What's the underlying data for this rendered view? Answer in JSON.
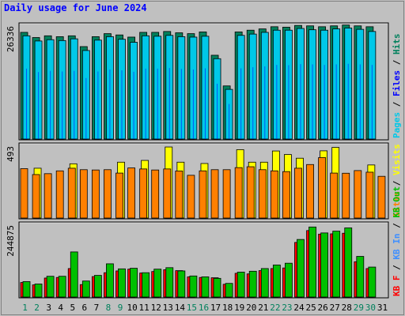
{
  "title": "Daily usage for June 2024",
  "colors": {
    "background": "#c0c0c0",
    "panel": "#c0c0c0",
    "hits": "#00805c",
    "files": "#0000ff",
    "pages": "#00c8e8",
    "visits": "#ffff00",
    "sites": "#ff8000",
    "kb_in": "#00c000",
    "kb_out": "#3f8fff",
    "kb_f": "#ff0000",
    "title": "#0000ff"
  },
  "days": [
    "1",
    "2",
    "3",
    "4",
    "5",
    "6",
    "7",
    "8",
    "9",
    "10",
    "11",
    "12",
    "13",
    "14",
    "15",
    "16",
    "17",
    "18",
    "19",
    "20",
    "21",
    "22",
    "23",
    "24",
    "25",
    "26",
    "27",
    "28",
    "29",
    "30",
    "31"
  ],
  "weekend_days": [
    1,
    2,
    8,
    9,
    15,
    16,
    22,
    23,
    29,
    30
  ],
  "chart_data": [
    {
      "type": "bar",
      "name": "hits-files-pages",
      "max_label": "26336",
      "ymax": 26336,
      "legend": [
        "Pages",
        "/",
        "Files",
        "/",
        "Hits"
      ],
      "legend_colors": [
        "#00c8e8",
        "#000000",
        "#0000ff",
        "#000000",
        "#00805c"
      ],
      "series": [
        {
          "name": "Hits",
          "values": [
            24700,
            23500,
            23900,
            23700,
            23900,
            21400,
            23700,
            24400,
            24100,
            23600,
            24700,
            24700,
            24900,
            24600,
            24400,
            24800,
            19400,
            12300,
            24800,
            25200,
            25500,
            26000,
            25900,
            26300,
            26200,
            26000,
            26200,
            26400,
            26200,
            26000,
            0
          ]
        },
        {
          "name": "Files",
          "values": [
            8000,
            7600,
            7700,
            7600,
            7700,
            6900,
            7600,
            7900,
            7800,
            7600,
            8000,
            8000,
            8000,
            7900,
            7900,
            8000,
            6300,
            3900,
            8000,
            8100,
            8200,
            8400,
            8300,
            8500,
            8400,
            8400,
            8500,
            8500,
            8500,
            8400,
            0
          ]
        },
        {
          "name": "Pages",
          "values": [
            23900,
            22700,
            23000,
            22800,
            23200,
            20500,
            22900,
            23700,
            23100,
            22400,
            23900,
            23800,
            24000,
            23700,
            23600,
            23800,
            18600,
            11500,
            24000,
            24300,
            24700,
            25200,
            25200,
            25600,
            25300,
            25200,
            25500,
            25700,
            25400,
            24900,
            0
          ]
        }
      ]
    },
    {
      "type": "bar",
      "name": "visits-sites",
      "max_label": "493",
      "ymax": 493,
      "legend": [
        "Sites",
        "/",
        "Visits"
      ],
      "legend_colors": [
        "#ff8000",
        "#000000",
        "#ffff00"
      ],
      "series": [
        {
          "name": "Visits",
          "values": [
            0,
            338,
            0,
            0,
            368,
            0,
            0,
            0,
            379,
            0,
            391,
            0,
            482,
            379,
            0,
            370,
            0,
            0,
            464,
            379,
            379,
            455,
            431,
            406,
            0,
            456,
            479,
            0,
            0,
            360,
            0
          ]
        },
        {
          "name": "Sites",
          "values": [
            335,
            295,
            301,
            320,
            338,
            328,
            326,
            328,
            305,
            340,
            333,
            326,
            333,
            319,
            290,
            320,
            328,
            328,
            342,
            348,
            328,
            320,
            315,
            338,
            363,
            410,
            305,
            304,
            322,
            311,
            283
          ]
        }
      ]
    },
    {
      "type": "bar",
      "name": "kbytes",
      "max_label": "244875",
      "ymax": 244875,
      "legend": [
        "KB F",
        "/",
        "KB In",
        "/",
        "KB Out"
      ],
      "legend_colors": [
        "#ff0000",
        "#000000",
        "#3f8fff",
        "#000000",
        "#00c000"
      ],
      "series": [
        {
          "name": "KB F",
          "values": [
            49000,
            41000,
            64000,
            66000,
            96000,
            42000,
            69000,
            82000,
            88000,
            94000,
            81000,
            86000,
            92000,
            89000,
            68000,
            66000,
            65000,
            43000,
            80000,
            78000,
            89000,
            96000,
            98000,
            184000,
            224000,
            212000,
            213000,
            215000,
            119000,
            96000,
            0
          ]
        },
        {
          "name": "KB In",
          "values": [
            52000,
            44000,
            70000,
            70000,
            152000,
            54000,
            73000,
            112000,
            95000,
            97000,
            82000,
            94000,
            99000,
            88000,
            71000,
            68000,
            63000,
            46000,
            84000,
            87000,
            96000,
            108000,
            114000,
            194000,
            236000,
            216000,
            222000,
            233000,
            137000,
            101000,
            0
          ]
        }
      ]
    }
  ]
}
